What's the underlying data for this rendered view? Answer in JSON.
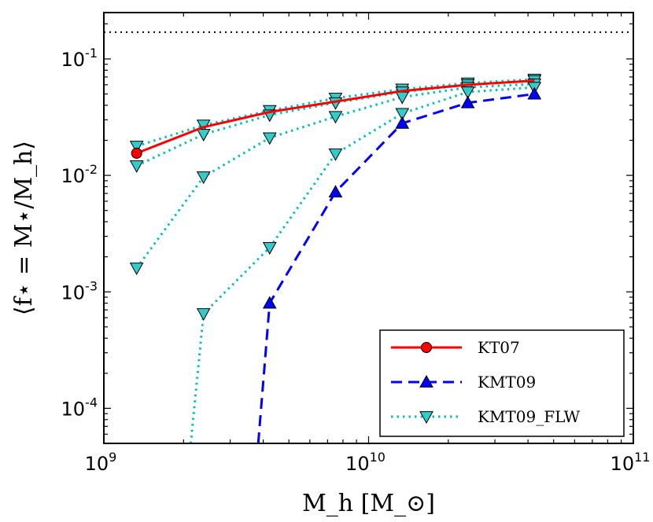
{
  "chart_data": {
    "type": "line",
    "title": "",
    "xlabel": "M_h [M_⊙]",
    "ylabel": "⟨f⋆ = M⋆/M_h⟩",
    "xscale": "log",
    "yscale": "log",
    "xlim": [
      1000000000.0,
      100000000000.0
    ],
    "ylim": [
      5e-05,
      0.25
    ],
    "x_ticks": [
      {
        "base": "10",
        "exp": "9",
        "value": 1000000000.0
      },
      {
        "base": "10",
        "exp": "10",
        "value": 10000000000.0
      },
      {
        "base": "10",
        "exp": "11",
        "value": 100000000000.0
      }
    ],
    "y_ticks": [
      {
        "base": "10",
        "exp": "-4",
        "value": 0.0001
      },
      {
        "base": "10",
        "exp": "-3",
        "value": 0.001
      },
      {
        "base": "10",
        "exp": "-2",
        "value": 0.01
      },
      {
        "base": "10",
        "exp": "-1",
        "value": 0.1
      }
    ],
    "reference_line": {
      "y": 0.17,
      "style": "dotted",
      "color": "#000000"
    },
    "series": [
      {
        "name": "KT07",
        "color": "#ff0000",
        "line_style": "solid",
        "marker": "circle",
        "marker_fill": "#ff0000",
        "marker_indices": [
          0
        ],
        "x": [
          1330000000.0,
          2380000000.0,
          4230000000.0,
          7500000000.0,
          13400000000.0,
          23700000000.0,
          42300000000.0
        ],
        "y": [
          0.0155,
          0.026,
          0.035,
          0.043,
          0.053,
          0.06,
          0.065
        ]
      },
      {
        "name": "KMT09",
        "color": "#0000ff",
        "line_style": "dashed",
        "marker": "triangle-up",
        "marker_fill": "#0000ff",
        "x": [
          3830000000.0,
          4230000000.0,
          7500000000.0,
          13400000000.0,
          23700000000.0,
          42300000000.0
        ],
        "y": [
          5e-05,
          0.0008,
          0.0072,
          0.028,
          0.042,
          0.05
        ],
        "marker_indices": [
          1,
          2,
          3,
          4,
          5
        ]
      },
      {
        "name": "KMT09_FLW",
        "color": "#00bfbf",
        "line_style": "dotted",
        "marker": "triangle-down",
        "marker_fill": "#33cccc",
        "show_in_legend": true,
        "x": [
          1330000000.0,
          2380000000.0,
          4230000000.0,
          7500000000.0,
          13400000000.0,
          23700000000.0,
          42300000000.0
        ],
        "y": [
          0.0178,
          0.027,
          0.036,
          0.046,
          0.055,
          0.062,
          0.067
        ]
      },
      {
        "name": "KMT09_FLW",
        "color": "#00bfbf",
        "line_style": "dotted",
        "marker": "triangle-down",
        "marker_fill": "#33cccc",
        "show_in_legend": false,
        "x": [
          1330000000.0,
          2380000000.0,
          4230000000.0,
          7500000000.0,
          13400000000.0,
          23700000000.0,
          42300000000.0
        ],
        "y": [
          0.0121,
          0.0225,
          0.033,
          0.042,
          0.052,
          0.06,
          0.065
        ]
      },
      {
        "name": "KMT09_FLW",
        "color": "#00bfbf",
        "line_style": "dotted",
        "marker": "triangle-down",
        "marker_fill": "#33cccc",
        "show_in_legend": false,
        "x": [
          1330000000.0,
          2380000000.0,
          4230000000.0,
          7500000000.0,
          13400000000.0,
          23700000000.0,
          42300000000.0
        ],
        "y": [
          0.0016,
          0.0097,
          0.021,
          0.032,
          0.047,
          0.057,
          0.061
        ]
      },
      {
        "name": "KMT09_FLW",
        "color": "#00bfbf",
        "line_style": "dotted",
        "marker": "triangle-down",
        "marker_fill": "#33cccc",
        "show_in_legend": false,
        "x": [
          2130000000.0,
          2380000000.0,
          4230000000.0,
          7500000000.0,
          13400000000.0,
          23700000000.0,
          42300000000.0
        ],
        "y": [
          5e-05,
          0.00065,
          0.0024,
          0.0153,
          0.034,
          0.052,
          0.057
        ],
        "marker_indices": [
          1,
          2,
          3,
          4,
          5,
          6
        ]
      }
    ],
    "legend": {
      "position": "lower-right",
      "entries": [
        "KT07",
        "KMT09",
        "KMT09_FLW"
      ]
    }
  }
}
